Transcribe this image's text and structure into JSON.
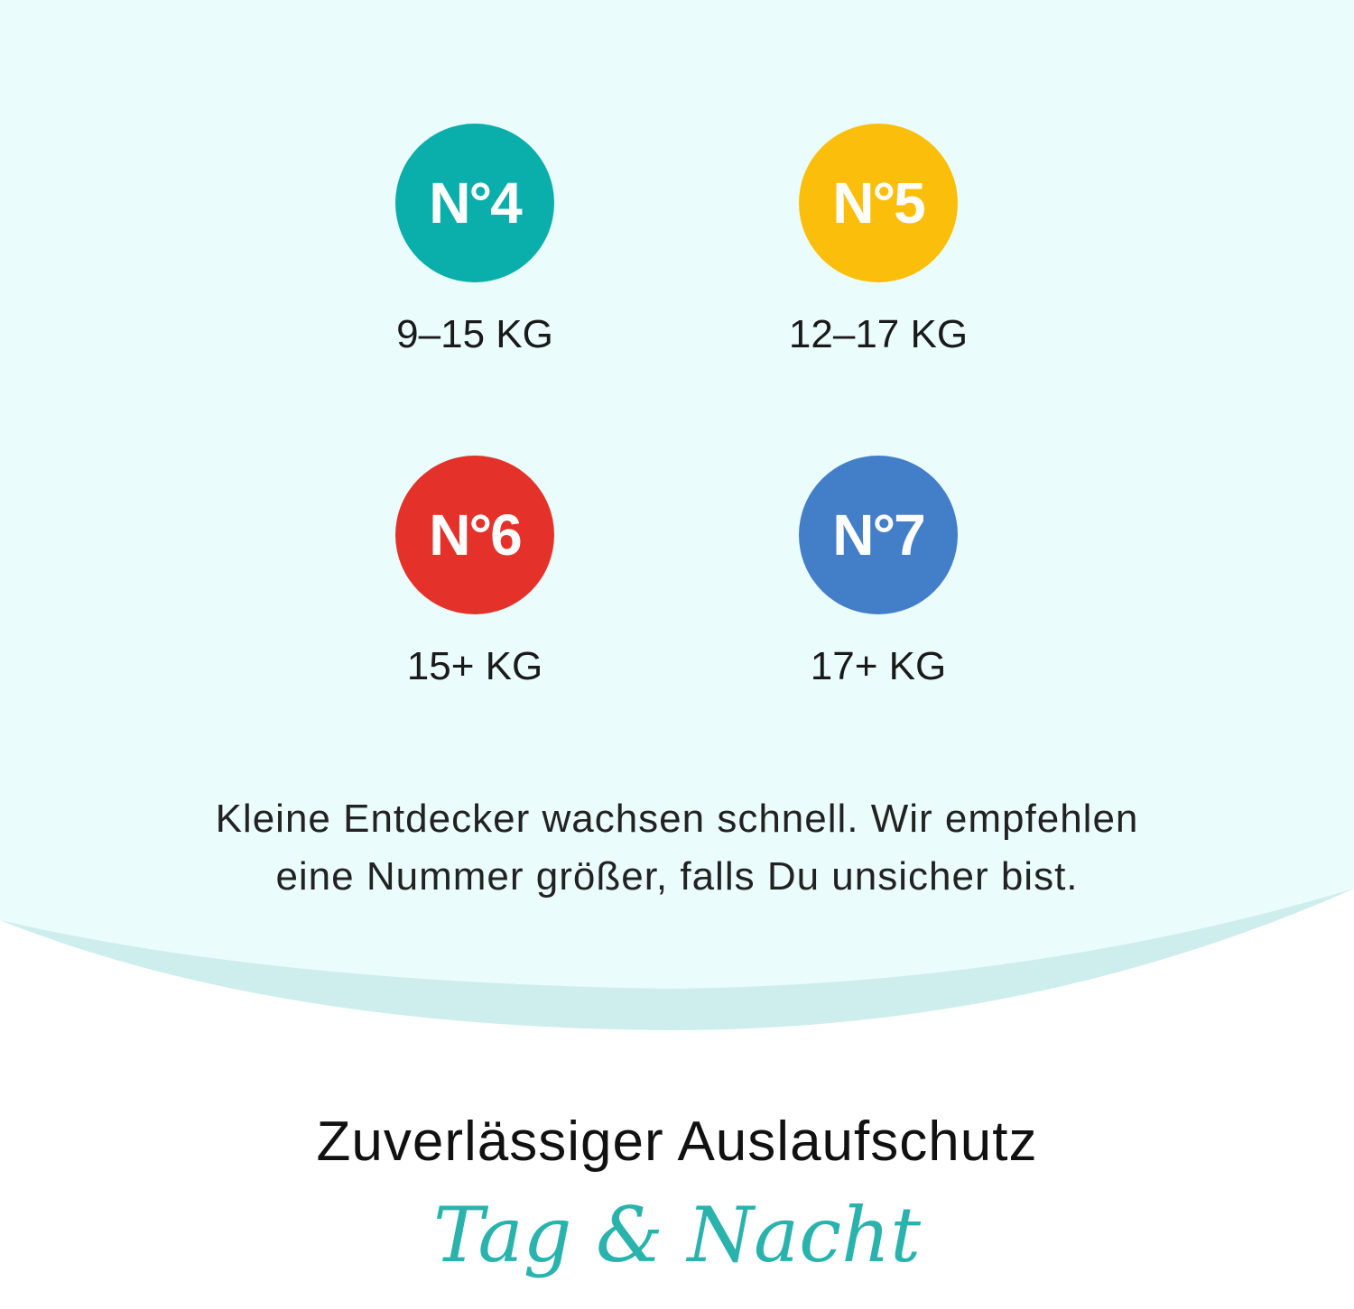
{
  "colors": {
    "background_top": "#eafcfb",
    "curve_band": "#cdeeec",
    "accent": "#2ab3ad"
  },
  "sizes": [
    {
      "number": "N°4",
      "weight": "9–15 KG",
      "color": "#0aaeaa"
    },
    {
      "number": "N°5",
      "weight": "12–17 KG",
      "color": "#fbbf0b"
    },
    {
      "number": "N°6",
      "weight": "15+ KG",
      "color": "#e4322a"
    },
    {
      "number": "N°7",
      "weight": "17+ KG",
      "color": "#437ec8"
    }
  ],
  "recommendation": {
    "line1": "Kleine Entdecker wachsen schnell. Wir empfehlen",
    "line2": "eine Nummer größer, falls Du unsicher bist."
  },
  "heading": "Zuverlässiger Auslaufschutz",
  "script_text": "Tag & Nacht"
}
